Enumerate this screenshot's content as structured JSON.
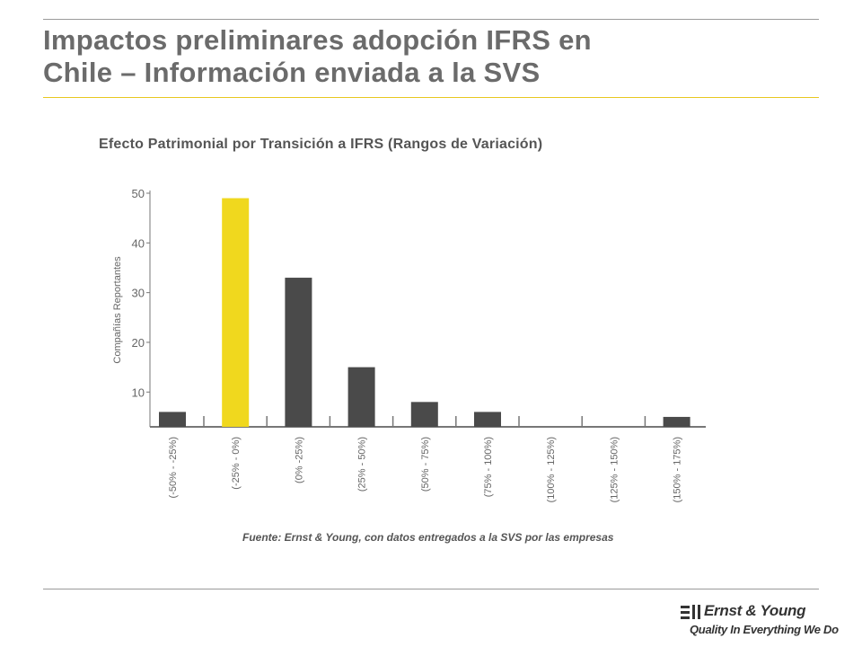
{
  "slide": {
    "title_line1": "Impactos preliminares adopción IFRS en",
    "title_line2": "Chile – Información enviada a la SVS"
  },
  "chart_data": {
    "type": "bar",
    "title": "Efecto Patrimonial por Transición a IFRS (Rangos de Variación)",
    "xlabel": "",
    "ylabel": "Compañías Reportantes",
    "categories": [
      "(-50% - -25%)",
      "(-25% - 0%)",
      "(0% -25%)",
      "(25% - 50%)",
      "(50% - 75%)",
      "(75% - 100%)",
      "(100% - 125%)",
      "(125% - 150%)",
      "(150% - 175%)"
    ],
    "values": [
      6,
      49,
      33,
      15,
      8,
      6,
      0,
      0,
      5
    ],
    "highlight_index": 1,
    "colors": {
      "default": "#4a4a4a",
      "highlight": "#f0d81e",
      "axis": "#777777",
      "text": "#666666"
    },
    "y_ticks": [
      10,
      20,
      30,
      40,
      50
    ],
    "ylim": [
      3,
      50
    ],
    "grid": false,
    "source": "Fuente: Ernst & Young, con datos entregados a la SVS por las empresas"
  },
  "logo": {
    "name": "Ernst & Young",
    "tagline": "Quality In Everything We Do",
    "icon": "ey-logo-mark-icon"
  }
}
